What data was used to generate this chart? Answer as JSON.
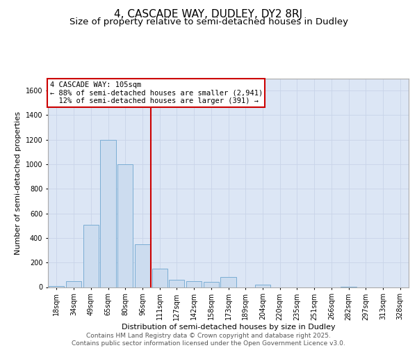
{
  "title": "4, CASCADE WAY, DUDLEY, DY2 8RJ",
  "subtitle": "Size of property relative to semi-detached houses in Dudley",
  "xlabel": "Distribution of semi-detached houses by size in Dudley",
  "ylabel": "Number of semi-detached properties",
  "categories": [
    "18sqm",
    "34sqm",
    "49sqm",
    "65sqm",
    "80sqm",
    "96sqm",
    "111sqm",
    "127sqm",
    "142sqm",
    "158sqm",
    "173sqm",
    "189sqm",
    "204sqm",
    "220sqm",
    "235sqm",
    "251sqm",
    "266sqm",
    "282sqm",
    "297sqm",
    "313sqm",
    "328sqm"
  ],
  "values": [
    10,
    50,
    510,
    1200,
    1000,
    350,
    150,
    60,
    50,
    40,
    80,
    0,
    20,
    0,
    0,
    0,
    0,
    5,
    0,
    0,
    0
  ],
  "bar_color": "#ccdcef",
  "bar_edge_color": "#7aadd4",
  "vline_color": "#cc0000",
  "vline_index": 6,
  "annotation_title": "4 CASCADE WAY: 105sqm",
  "annotation_smaller": "← 88% of semi-detached houses are smaller (2,941)",
  "annotation_larger": "12% of semi-detached houses are larger (391) →",
  "box_edge_color": "#cc0000",
  "ylim": [
    0,
    1700
  ],
  "yticks": [
    0,
    200,
    400,
    600,
    800,
    1000,
    1200,
    1400,
    1600
  ],
  "grid_color": "#c8d4e8",
  "background_color": "#dce6f5",
  "footer_line1": "Contains HM Land Registry data © Crown copyright and database right 2025.",
  "footer_line2": "Contains public sector information licensed under the Open Government Licence v3.0.",
  "title_fontsize": 11,
  "subtitle_fontsize": 9.5,
  "axis_label_fontsize": 8,
  "tick_fontsize": 7,
  "footer_fontsize": 6.5,
  "annotation_fontsize": 7.5
}
